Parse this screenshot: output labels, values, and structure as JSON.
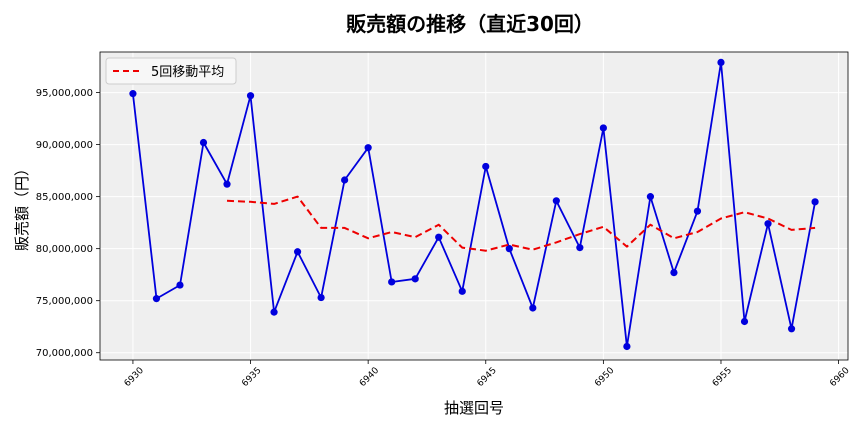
{
  "chart_data": {
    "type": "line",
    "title": "販売額の推移（直近30回）",
    "xlabel": "抽選回号",
    "ylabel": "販売額（円）",
    "xlim": [
      6928.6,
      6960.4
    ],
    "ylim": [
      69300000,
      98900000
    ],
    "xticks": [
      6930,
      6935,
      6940,
      6945,
      6950,
      6955,
      6960
    ],
    "xtick_labels": [
      "6930",
      "6935",
      "6940",
      "6945",
      "6950",
      "6955",
      "6960"
    ],
    "yticks": [
      70000000,
      75000000,
      80000000,
      85000000,
      90000000,
      95000000
    ],
    "ytick_labels": [
      "70,000,000",
      "75,000,000",
      "80,000,000",
      "85,000,000",
      "90,000,000",
      "95,000,000"
    ],
    "grid": true,
    "legend_position": "top-left",
    "series": [
      {
        "style": "solid-with-markers",
        "color": "#0000dd",
        "x": [
          6930,
          6931,
          6932,
          6933,
          6934,
          6935,
          6936,
          6937,
          6938,
          6939,
          6940,
          6941,
          6942,
          6943,
          6944,
          6945,
          6946,
          6947,
          6948,
          6949,
          6950,
          6951,
          6952,
          6953,
          6954,
          6955,
          6956,
          6957,
          6958,
          6959
        ],
        "values": [
          94900000,
          75200000,
          76500000,
          90200000,
          86200000,
          94700000,
          73900000,
          79700000,
          75300000,
          86600000,
          89700000,
          76800000,
          77100000,
          81100000,
          75900000,
          87900000,
          80000000,
          74300000,
          84600000,
          80100000,
          91600000,
          70600000,
          85000000,
          77700000,
          83600000,
          97900000,
          73000000,
          82400000,
          72300000,
          84500000
        ]
      },
      {
        "name": "5回移動平均",
        "style": "dashed",
        "color": "#ee0000",
        "x": [
          6934,
          6935,
          6936,
          6937,
          6938,
          6939,
          6940,
          6941,
          6942,
          6943,
          6944,
          6945,
          6946,
          6947,
          6948,
          6949,
          6950,
          6951,
          6952,
          6953,
          6954,
          6955,
          6956,
          6957,
          6958,
          6959
        ],
        "values": [
          84600000,
          84500000,
          84300000,
          85000000,
          82000000,
          82000000,
          81000000,
          81600000,
          81100000,
          82300000,
          80100000,
          79800000,
          80400000,
          79900000,
          80600000,
          81400000,
          82100000,
          80200000,
          82300000,
          81000000,
          81600000,
          82900000,
          83500000,
          82900000,
          81800000,
          82000000
        ]
      }
    ]
  }
}
